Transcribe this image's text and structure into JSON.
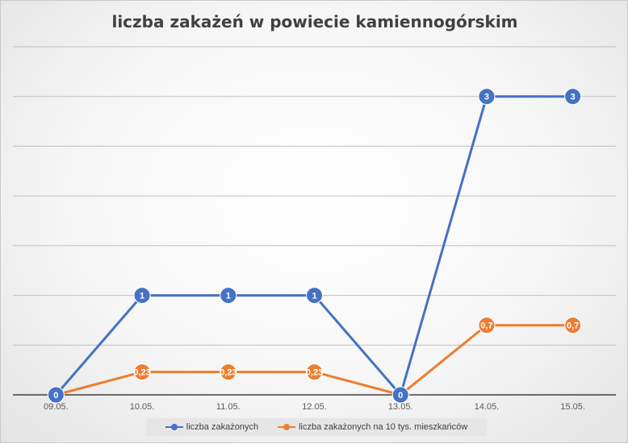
{
  "chart_data": {
    "type": "line",
    "title": "liczba zakażeń w powiecie kamiennogórskim",
    "categories": [
      "09.05.",
      "10.05.",
      "11.05.",
      "12.05.",
      "13.05.",
      "14.05.",
      "15.05."
    ],
    "ylim": [
      0,
      3.5
    ],
    "grid": true,
    "legend_position": "bottom",
    "series": [
      {
        "name": "liczba zakażonych",
        "color": "#4472c4",
        "values": [
          0,
          1,
          1,
          1,
          0,
          3,
          3
        ],
        "labels": [
          "0",
          "1",
          "1",
          "1",
          "0",
          "3",
          "3"
        ]
      },
      {
        "name": "liczba zakażonych na 10 tys. mieszkańców",
        "color": "#ed7d31",
        "values": [
          0,
          0.23,
          0.23,
          0.23,
          0,
          0.7,
          0.7
        ],
        "labels": [
          "0",
          "0,23",
          "0,23",
          "0,23",
          "0",
          "0,7",
          "0,7"
        ]
      }
    ]
  }
}
